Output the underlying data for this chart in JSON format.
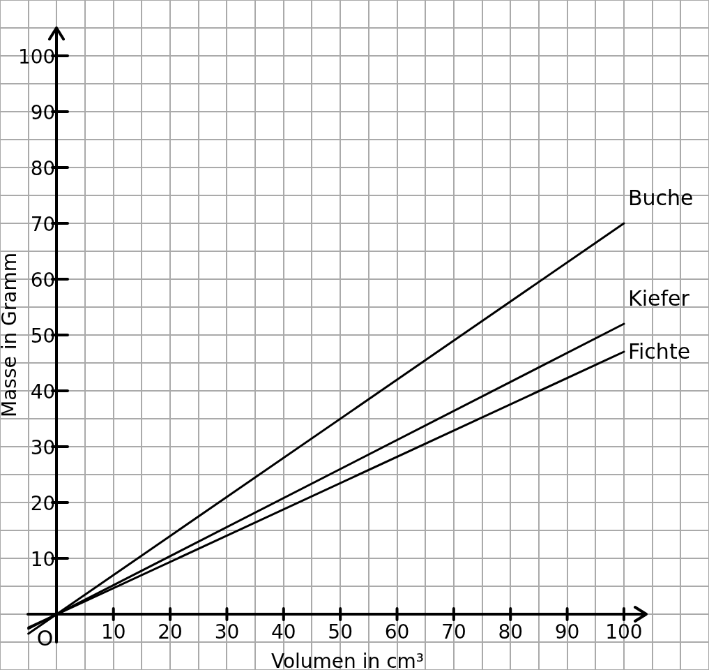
{
  "chart_data": {
    "type": "line",
    "xlabel": "Volumen in cm³",
    "ylabel": "Masse in Gramm",
    "xlim": [
      -10,
      115
    ],
    "ylim": [
      -10,
      110
    ],
    "xticks": [
      {
        "value": -10,
        "label": null
      },
      {
        "value": -5,
        "label": null
      },
      {
        "value": 0,
        "label": null
      },
      {
        "value": 5,
        "label": null
      },
      10,
      {
        "value": 15,
        "label": null
      },
      20,
      {
        "value": 25,
        "label": null
      },
      30,
      {
        "value": 35,
        "label": null
      },
      40,
      {
        "value": 45,
        "label": null
      },
      50,
      {
        "value": 55,
        "label": null
      },
      60,
      {
        "value": 65,
        "label": null
      },
      70,
      {
        "value": 75,
        "label": null
      },
      80,
      {
        "value": 85,
        "label": null
      },
      90,
      {
        "value": 95,
        "label": null
      },
      100,
      {
        "value": 105,
        "label": null
      },
      {
        "value": 110,
        "label": null
      },
      {
        "value": 115,
        "label": null
      }
    ],
    "yticks": [
      {
        "value": -10,
        "label": null
      },
      {
        "value": -5,
        "label": null
      },
      {
        "value": 0,
        "label": null
      },
      {
        "value": 5,
        "label": null
      },
      10,
      {
        "value": 15,
        "label": null
      },
      20,
      {
        "value": 25,
        "label": null
      },
      30,
      {
        "value": 35,
        "label": null
      },
      40,
      {
        "value": 45,
        "label": null
      },
      50,
      {
        "value": 55,
        "label": null
      },
      60,
      {
        "value": 65,
        "label": null
      },
      70,
      {
        "value": 75,
        "label": null
      },
      80,
      {
        "value": 85,
        "label": null
      },
      90,
      {
        "value": 95,
        "label": null
      },
      100,
      {
        "value": 105,
        "label": null
      },
      {
        "value": 110,
        "label": null
      }
    ],
    "grid": true,
    "marker": "none",
    "line_style": "solid",
    "series": [
      {
        "name": "Buche",
        "color": "#000000",
        "values": [
          -3.5,
          70
        ]
      },
      {
        "name": "Kiefer",
        "color": "#000000",
        "values": [
          -2.6,
          52
        ]
      },
      {
        "name": "Fichte",
        "color": "#000000",
        "values": [
          -2.4,
          47
        ]
      }
    ],
    "x": [
      -5,
      100
    ],
    "annotations": [
      {
        "text": "O",
        "x": 0,
        "y": 0
      }
    ]
  }
}
